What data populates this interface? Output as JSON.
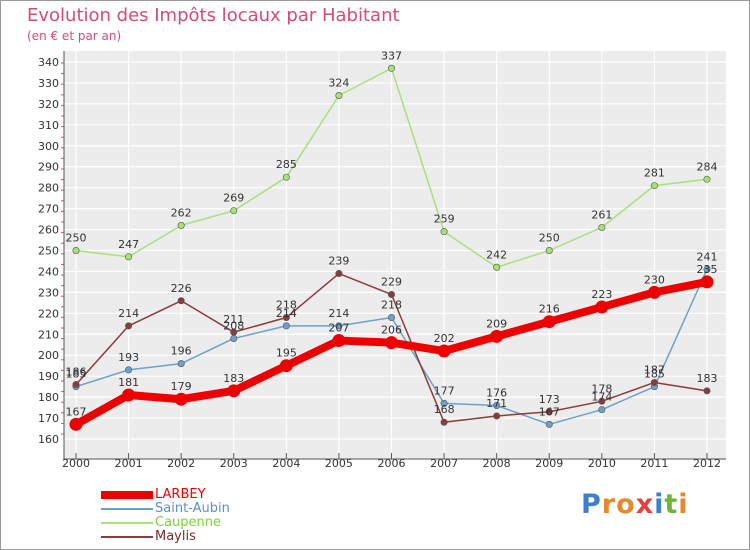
{
  "header": {
    "title": "Evolution des Impôts locaux par Habitant",
    "subtitle": "(en € et par an)"
  },
  "logo": {
    "letters": [
      "P",
      "r",
      "o",
      "x",
      "i",
      "t",
      "i"
    ],
    "colors": [
      "#3d7fcc",
      "#e8872b",
      "#e8872b",
      "#e2423b",
      "#3d7fcc",
      "#6fb53b",
      "#e8872b"
    ]
  },
  "chart_data": {
    "type": "line",
    "title": "Evolution des Impôts locaux par Habitant",
    "subtitle": "(en € et par an)",
    "xlabel": "",
    "ylabel": "",
    "categories": [
      "2000",
      "2001",
      "2002",
      "2003",
      "2004",
      "2005",
      "2006",
      "2007",
      "2008",
      "2009",
      "2010",
      "2011",
      "2012"
    ],
    "ylim": [
      160,
      340
    ],
    "yticks": [
      160,
      170,
      180,
      190,
      200,
      210,
      220,
      230,
      240,
      250,
      260,
      270,
      280,
      290,
      300,
      310,
      320,
      330,
      340
    ],
    "grid": true,
    "legend_position": "bottom-left",
    "series": [
      {
        "name": "LARBEY",
        "color": "#ee0000",
        "labelColor": "#ee0000",
        "emphasis": true,
        "values": [
          167,
          181,
          179,
          183,
          195,
          207,
          206,
          202,
          209,
          216,
          223,
          230,
          235
        ],
        "labels": [
          "167",
          "181",
          "179",
          "183",
          "195",
          "207",
          "206",
          "202",
          "209",
          "216",
          "223",
          "230",
          "235"
        ]
      },
      {
        "name": "Saint-Aubin",
        "color": "#6aa2cc",
        "labelColor": "#5b8fc7",
        "emphasis": false,
        "values": [
          185,
          193,
          196,
          208,
          214,
          214,
          218,
          177,
          176,
          167,
          174,
          185,
          241
        ],
        "labels": [
          "185",
          "193",
          "196",
          "208",
          "214",
          "214",
          "218",
          "177",
          "176",
          "167",
          "174",
          "185",
          "241"
        ]
      },
      {
        "name": "Caupenne",
        "color": "#a8e07a",
        "labelColor": "#7fcf3f",
        "emphasis": false,
        "values": [
          250,
          247,
          262,
          269,
          285,
          324,
          337,
          259,
          242,
          250,
          261,
          281,
          284
        ],
        "labels": [
          "250",
          "247",
          "262",
          "269",
          "285",
          "324",
          "337",
          "259",
          "242",
          "250",
          "261",
          "281",
          "284"
        ]
      },
      {
        "name": "Maylis",
        "color": "#8a3c3c",
        "labelColor": "#7a2a2a",
        "emphasis": false,
        "values": [
          186,
          214,
          226,
          211,
          218,
          239,
          229,
          168,
          171,
          173,
          178,
          187,
          183
        ],
        "labels": [
          "186",
          "214",
          "226",
          "211",
          "218",
          "239",
          "229",
          "168",
          "171",
          "173",
          "178",
          "187",
          "183"
        ]
      }
    ]
  }
}
